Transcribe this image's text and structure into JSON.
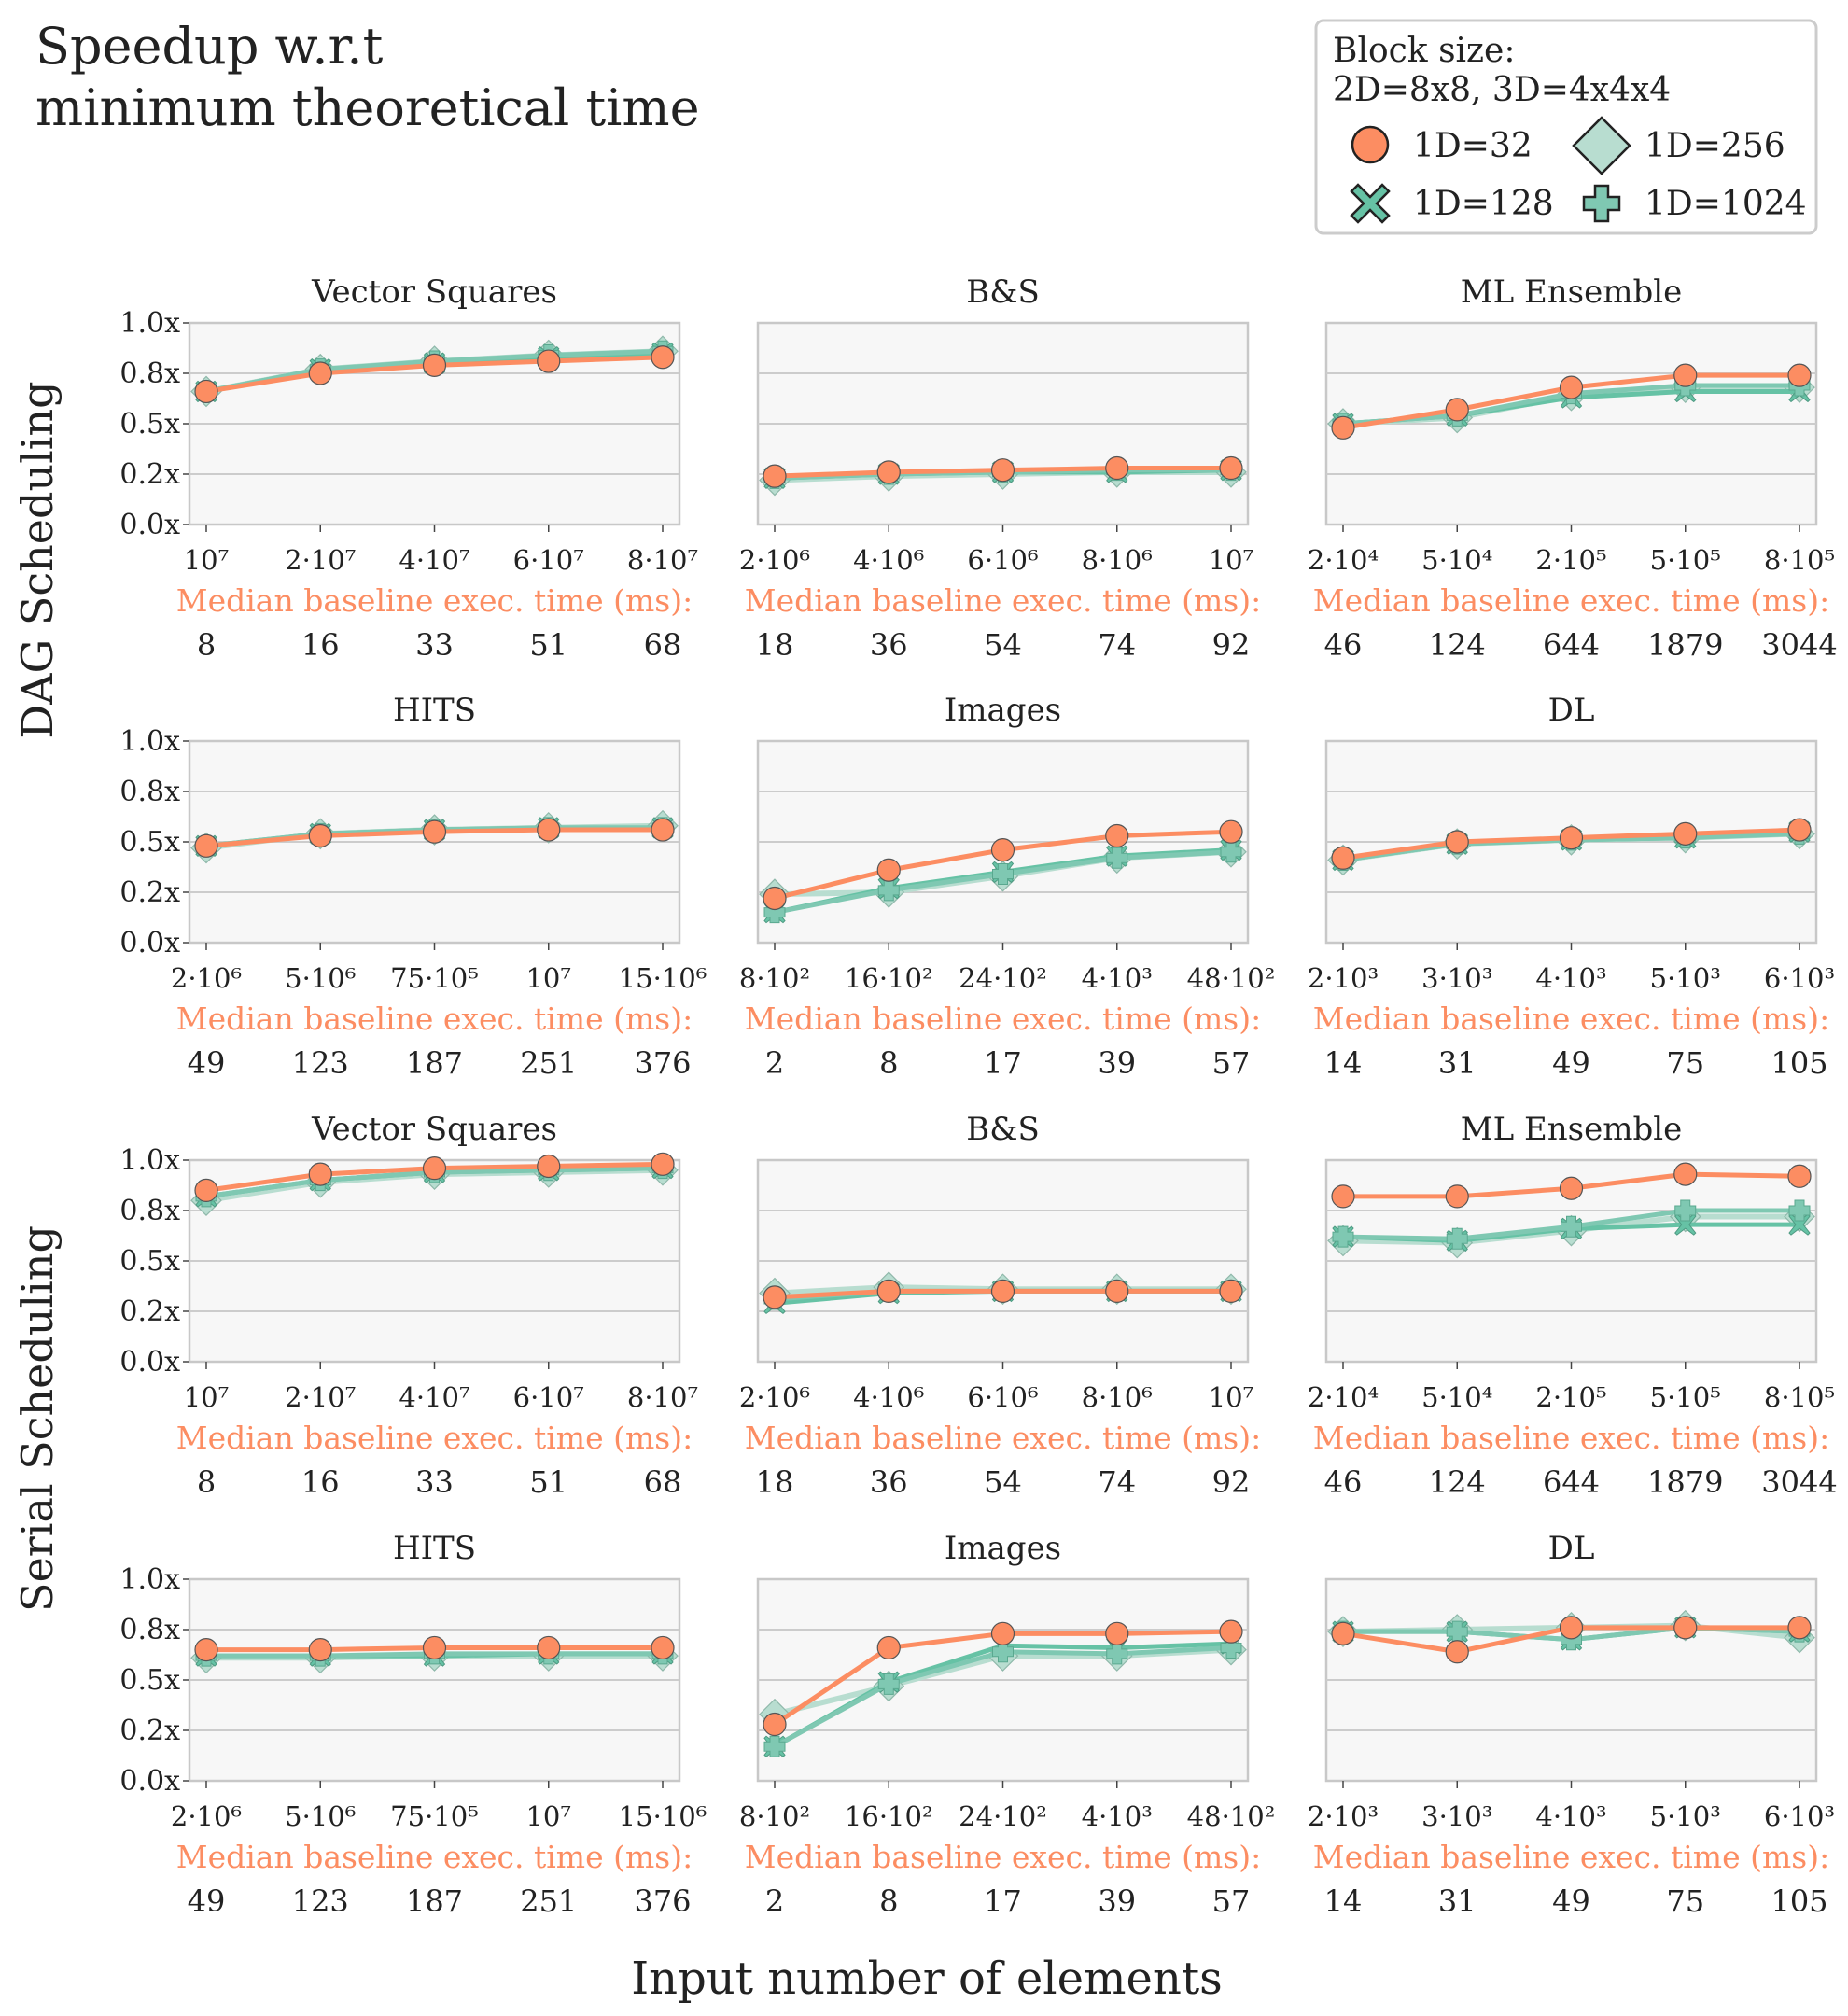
{
  "figure": {
    "title_line1": "Speedup w.r.t",
    "title_line2": "minimum theoretical time",
    "row_group_labels": [
      "DAG Scheduling",
      "Serial Scheduling"
    ],
    "xlabel": "Input number of elements",
    "baseline_label": "Median baseline exec. time (ms):",
    "colors": {
      "1D=32": "#fc8d62",
      "1D=128": "#66c2a5",
      "1D=256": "#b8ddd0",
      "1D=1024": "#7fc8b2"
    }
  },
  "legend": {
    "title_line1": "Block size:",
    "title_line2": "2D=8x8, 3D=4x4x4",
    "entries": [
      {
        "label": "1D=32",
        "marker": "circle"
      },
      {
        "label": "1D=256",
        "marker": "diamond"
      },
      {
        "label": "1D=128",
        "marker": "x"
      },
      {
        "label": "1D=1024",
        "marker": "plus"
      }
    ]
  },
  "chart_data": [
    {
      "type": "line",
      "title": "Vector Squares",
      "group": "DAG Scheduling",
      "y_ticks": [
        "0.0x",
        "0.2x",
        "0.5x",
        "0.8x",
        "1.0x"
      ],
      "ylim": [
        0,
        1
      ],
      "categories": [
        "10^7",
        "2·10^7",
        "4·10^7",
        "6·10^7",
        "8·10^7"
      ],
      "baseline_ms": [
        "8",
        "16",
        "33",
        "51",
        "68"
      ],
      "series": [
        {
          "name": "1D=32",
          "values": [
            0.66,
            0.75,
            0.79,
            0.81,
            0.83
          ]
        },
        {
          "name": "1D=128",
          "values": [
            0.66,
            0.77,
            0.8,
            0.83,
            0.85
          ]
        },
        {
          "name": "1D=256",
          "values": [
            0.66,
            0.77,
            0.81,
            0.84,
            0.86
          ]
        },
        {
          "name": "1D=1024",
          "values": [
            0.66,
            0.77,
            0.81,
            0.84,
            0.86
          ]
        }
      ]
    },
    {
      "type": "line",
      "title": "B&S",
      "group": "DAG Scheduling",
      "y_ticks": [
        "0.0x",
        "0.2x",
        "0.5x",
        "0.8x",
        "1.0x"
      ],
      "ylim": [
        0,
        1
      ],
      "categories": [
        "2·10^6",
        "4·10^6",
        "6·10^6",
        "8·10^6",
        "10^7"
      ],
      "baseline_ms": [
        "18",
        "36",
        "54",
        "74",
        "92"
      ],
      "series": [
        {
          "name": "1D=32",
          "values": [
            0.24,
            0.26,
            0.27,
            0.28,
            0.28
          ]
        },
        {
          "name": "1D=128",
          "values": [
            0.23,
            0.25,
            0.26,
            0.26,
            0.27
          ]
        },
        {
          "name": "1D=256",
          "values": [
            0.22,
            0.24,
            0.25,
            0.26,
            0.26
          ]
        },
        {
          "name": "1D=1024",
          "values": [
            0.23,
            0.25,
            0.26,
            0.27,
            0.27
          ]
        }
      ]
    },
    {
      "type": "line",
      "title": "ML Ensemble",
      "group": "DAG Scheduling",
      "y_ticks": [
        "0.0x",
        "0.2x",
        "0.5x",
        "0.8x",
        "1.0x"
      ],
      "ylim": [
        0,
        1
      ],
      "categories": [
        "2·10^4",
        "5·10^4",
        "2·10^5",
        "5·10^5",
        "8·10^5"
      ],
      "baseline_ms": [
        "46",
        "124",
        "644",
        "1879",
        "3044"
      ],
      "series": [
        {
          "name": "1D=32",
          "values": [
            0.48,
            0.57,
            0.68,
            0.74,
            0.74
          ]
        },
        {
          "name": "1D=128",
          "values": [
            0.5,
            0.54,
            0.63,
            0.66,
            0.66
          ]
        },
        {
          "name": "1D=256",
          "values": [
            0.5,
            0.53,
            0.64,
            0.68,
            0.68
          ]
        },
        {
          "name": "1D=1024",
          "values": [
            0.5,
            0.54,
            0.65,
            0.69,
            0.69
          ]
        }
      ]
    },
    {
      "type": "line",
      "title": "HITS",
      "group": "DAG Scheduling",
      "y_ticks": [
        "0.0x",
        "0.2x",
        "0.5x",
        "0.8x",
        "1.0x"
      ],
      "ylim": [
        0,
        1
      ],
      "categories": [
        "2·10^6",
        "5·10^6",
        "75·10^5",
        "10^7",
        "15·10^6"
      ],
      "baseline_ms": [
        "49",
        "123",
        "187",
        "251",
        "376"
      ],
      "series": [
        {
          "name": "1D=32",
          "values": [
            0.48,
            0.53,
            0.55,
            0.56,
            0.56
          ]
        },
        {
          "name": "1D=128",
          "values": [
            0.48,
            0.54,
            0.56,
            0.57,
            0.57
          ]
        },
        {
          "name": "1D=256",
          "values": [
            0.47,
            0.54,
            0.56,
            0.57,
            0.58
          ]
        },
        {
          "name": "1D=1024",
          "values": [
            0.48,
            0.54,
            0.56,
            0.57,
            0.57
          ]
        }
      ]
    },
    {
      "type": "line",
      "title": "Images",
      "group": "DAG Scheduling",
      "y_ticks": [
        "0.0x",
        "0.2x",
        "0.5x",
        "0.8x",
        "1.0x"
      ],
      "ylim": [
        0,
        1
      ],
      "categories": [
        "8·10^2",
        "16·10^2",
        "24·10^2",
        "4·10^3",
        "48·10^2"
      ],
      "baseline_ms": [
        "2",
        "8",
        "17",
        "39",
        "57"
      ],
      "series": [
        {
          "name": "1D=32",
          "values": [
            0.22,
            0.36,
            0.46,
            0.53,
            0.55
          ]
        },
        {
          "name": "1D=128",
          "values": [
            0.15,
            0.27,
            0.35,
            0.43,
            0.46
          ]
        },
        {
          "name": "1D=256",
          "values": [
            0.24,
            0.25,
            0.33,
            0.42,
            0.45
          ]
        },
        {
          "name": "1D=1024",
          "values": [
            0.15,
            0.26,
            0.34,
            0.42,
            0.45
          ]
        }
      ]
    },
    {
      "type": "line",
      "title": "DL",
      "group": "DAG Scheduling",
      "y_ticks": [
        "0.0x",
        "0.2x",
        "0.5x",
        "0.8x",
        "1.0x"
      ],
      "ylim": [
        0,
        1
      ],
      "categories": [
        "2·10^3",
        "3·10^3",
        "4·10^3",
        "5·10^3",
        "6·10^3"
      ],
      "baseline_ms": [
        "14",
        "31",
        "49",
        "75",
        "105"
      ],
      "series": [
        {
          "name": "1D=32",
          "values": [
            0.42,
            0.5,
            0.52,
            0.54,
            0.56
          ]
        },
        {
          "name": "1D=128",
          "values": [
            0.41,
            0.49,
            0.51,
            0.52,
            0.55
          ]
        },
        {
          "name": "1D=256",
          "values": [
            0.41,
            0.49,
            0.51,
            0.52,
            0.54
          ]
        },
        {
          "name": "1D=1024",
          "values": [
            0.41,
            0.49,
            0.51,
            0.52,
            0.54
          ]
        }
      ]
    },
    {
      "type": "line",
      "title": "Vector Squares",
      "group": "Serial Scheduling",
      "y_ticks": [
        "0.0x",
        "0.2x",
        "0.5x",
        "0.8x",
        "1.0x"
      ],
      "ylim": [
        0,
        1
      ],
      "categories": [
        "10^7",
        "2·10^7",
        "4·10^7",
        "6·10^7",
        "8·10^7"
      ],
      "baseline_ms": [
        "8",
        "16",
        "33",
        "51",
        "68"
      ],
      "series": [
        {
          "name": "1D=32",
          "values": [
            0.85,
            0.93,
            0.96,
            0.97,
            0.98
          ]
        },
        {
          "name": "1D=128",
          "values": [
            0.82,
            0.9,
            0.94,
            0.95,
            0.96
          ]
        },
        {
          "name": "1D=256",
          "values": [
            0.8,
            0.89,
            0.93,
            0.94,
            0.95
          ]
        },
        {
          "name": "1D=1024",
          "values": [
            0.82,
            0.9,
            0.94,
            0.95,
            0.96
          ]
        }
      ]
    },
    {
      "type": "line",
      "title": "B&S",
      "group": "Serial Scheduling",
      "y_ticks": [
        "0.0x",
        "0.2x",
        "0.5x",
        "0.8x",
        "1.0x"
      ],
      "ylim": [
        0,
        1
      ],
      "categories": [
        "2·10^6",
        "4·10^6",
        "6·10^6",
        "8·10^6",
        "10^7"
      ],
      "baseline_ms": [
        "18",
        "36",
        "54",
        "74",
        "92"
      ],
      "series": [
        {
          "name": "1D=32",
          "values": [
            0.32,
            0.35,
            0.35,
            0.35,
            0.35
          ]
        },
        {
          "name": "1D=128",
          "values": [
            0.29,
            0.34,
            0.35,
            0.35,
            0.35
          ]
        },
        {
          "name": "1D=256",
          "values": [
            0.34,
            0.37,
            0.36,
            0.36,
            0.36
          ]
        },
        {
          "name": "1D=1024",
          "values": [
            0.31,
            0.35,
            0.35,
            0.35,
            0.35
          ]
        }
      ]
    },
    {
      "type": "line",
      "title": "ML Ensemble",
      "group": "Serial Scheduling",
      "y_ticks": [
        "0.0x",
        "0.2x",
        "0.5x",
        "0.8x",
        "1.0x"
      ],
      "ylim": [
        0,
        1
      ],
      "categories": [
        "2·10^4",
        "5·10^4",
        "2·10^5",
        "5·10^5",
        "8·10^5"
      ],
      "baseline_ms": [
        "46",
        "124",
        "644",
        "1879",
        "3044"
      ],
      "series": [
        {
          "name": "1D=32",
          "values": [
            0.82,
            0.82,
            0.86,
            0.93,
            0.92
          ]
        },
        {
          "name": "1D=128",
          "values": [
            0.62,
            0.6,
            0.66,
            0.68,
            0.68
          ]
        },
        {
          "name": "1D=256",
          "values": [
            0.6,
            0.59,
            0.65,
            0.72,
            0.72
          ]
        },
        {
          "name": "1D=1024",
          "values": [
            0.62,
            0.61,
            0.67,
            0.75,
            0.75
          ]
        }
      ]
    },
    {
      "type": "line",
      "title": "HITS",
      "group": "Serial Scheduling",
      "y_ticks": [
        "0.0x",
        "0.2x",
        "0.5x",
        "0.8x",
        "1.0x"
      ],
      "ylim": [
        0,
        1
      ],
      "categories": [
        "2·10^6",
        "5·10^6",
        "75·10^5",
        "10^7",
        "15·10^6"
      ],
      "baseline_ms": [
        "49",
        "123",
        "187",
        "251",
        "376"
      ],
      "series": [
        {
          "name": "1D=32",
          "values": [
            0.65,
            0.65,
            0.66,
            0.66,
            0.66
          ]
        },
        {
          "name": "1D=128",
          "values": [
            0.62,
            0.62,
            0.62,
            0.63,
            0.63
          ]
        },
        {
          "name": "1D=256",
          "values": [
            0.61,
            0.61,
            0.62,
            0.62,
            0.62
          ]
        },
        {
          "name": "1D=1024",
          "values": [
            0.62,
            0.62,
            0.63,
            0.63,
            0.63
          ]
        }
      ]
    },
    {
      "type": "line",
      "title": "Images",
      "group": "Serial Scheduling",
      "y_ticks": [
        "0.0x",
        "0.2x",
        "0.5x",
        "0.8x",
        "1.0x"
      ],
      "ylim": [
        0,
        1
      ],
      "categories": [
        "8·10^2",
        "16·10^2",
        "24·10^2",
        "4·10^3",
        "48·10^2"
      ],
      "baseline_ms": [
        "2",
        "8",
        "17",
        "39",
        "57"
      ],
      "series": [
        {
          "name": "1D=32",
          "values": [
            0.28,
            0.66,
            0.73,
            0.73,
            0.74
          ]
        },
        {
          "name": "1D=128",
          "values": [
            0.17,
            0.49,
            0.67,
            0.66,
            0.68
          ]
        },
        {
          "name": "1D=256",
          "values": [
            0.33,
            0.47,
            0.62,
            0.62,
            0.65
          ]
        },
        {
          "name": "1D=1024",
          "values": [
            0.17,
            0.48,
            0.64,
            0.63,
            0.66
          ]
        }
      ]
    },
    {
      "type": "line",
      "title": "DL",
      "group": "Serial Scheduling",
      "y_ticks": [
        "0.0x",
        "0.2x",
        "0.5x",
        "0.8x",
        "1.0x"
      ],
      "ylim": [
        0,
        1
      ],
      "categories": [
        "2·10^3",
        "3·10^3",
        "4·10^3",
        "5·10^3",
        "6·10^3"
      ],
      "baseline_ms": [
        "14",
        "31",
        "49",
        "75",
        "105"
      ],
      "series": [
        {
          "name": "1D=32",
          "values": [
            0.73,
            0.64,
            0.76,
            0.76,
            0.76
          ]
        },
        {
          "name": "1D=128",
          "values": [
            0.74,
            0.74,
            0.7,
            0.76,
            0.74
          ]
        },
        {
          "name": "1D=256",
          "values": [
            0.74,
            0.75,
            0.76,
            0.77,
            0.71
          ]
        },
        {
          "name": "1D=1024",
          "values": [
            0.74,
            0.74,
            0.7,
            0.76,
            0.74
          ]
        }
      ]
    }
  ]
}
